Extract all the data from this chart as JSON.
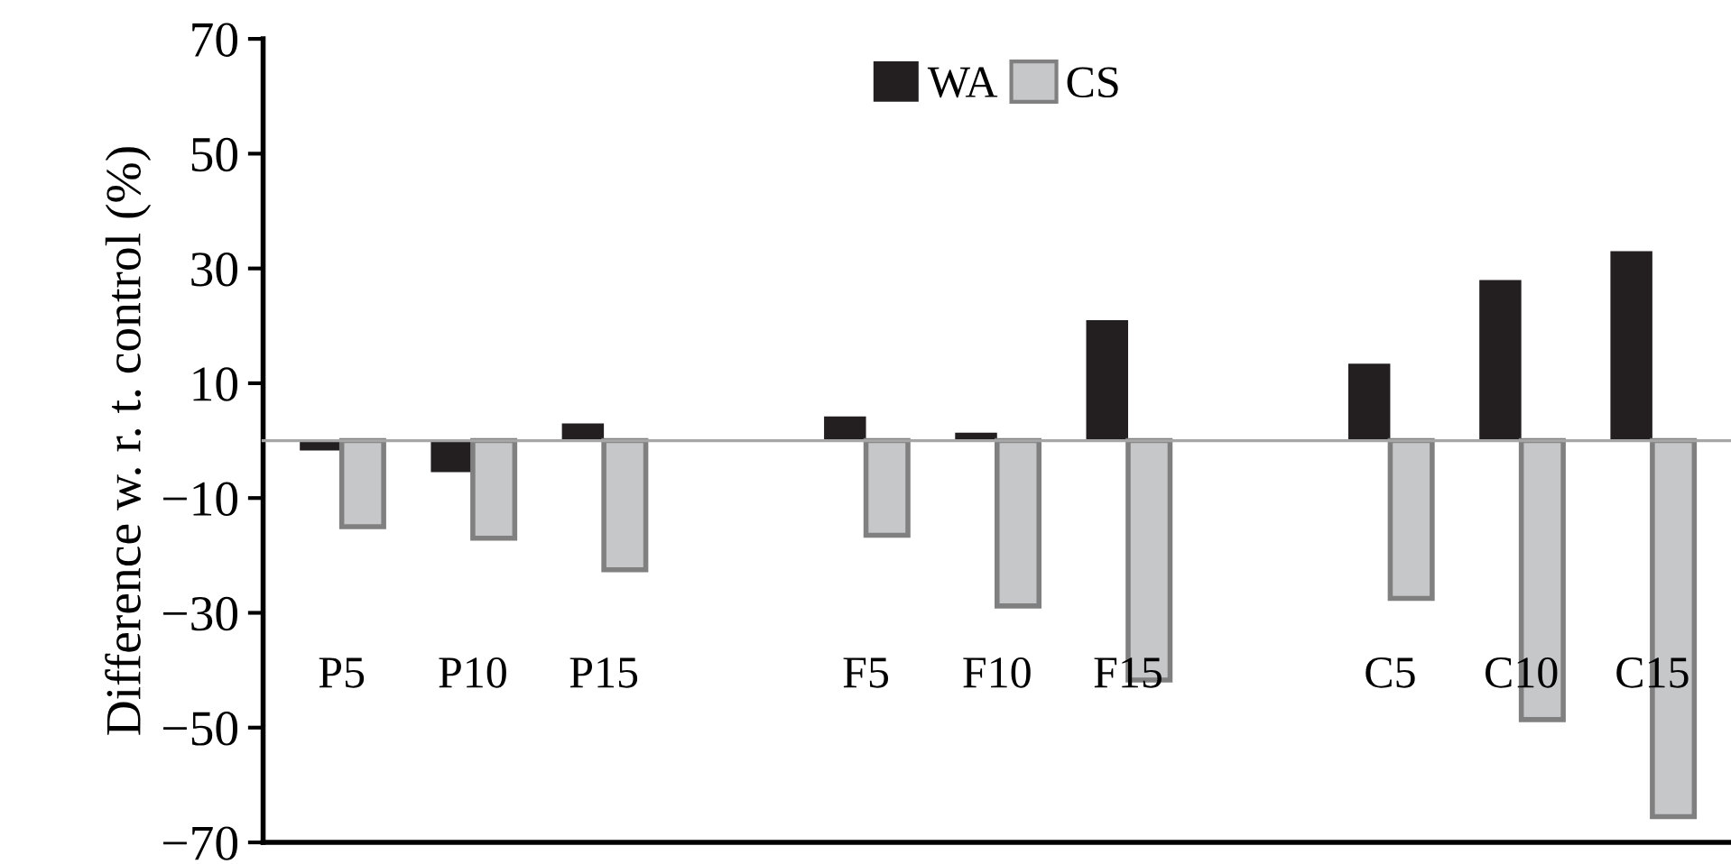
{
  "chart_data": {
    "type": "bar",
    "ylabel": "Difference w. r. t. control (%)",
    "categories": [
      "P5",
      "P10",
      "P15",
      null,
      "F5",
      "F10",
      "F15",
      null,
      "C5",
      "C10",
      "C15"
    ],
    "series": [
      {
        "name": "WA",
        "color": "#231f20",
        "values": [
          -1.7,
          -5.5,
          3,
          null,
          4.2,
          1.4,
          21,
          null,
          13.4,
          28,
          33
        ]
      },
      {
        "name": "CS",
        "color": "#c6c7c9",
        "values": [
          -15,
          -17,
          -22.5,
          null,
          -16.5,
          -28.8,
          -41.7,
          null,
          -27.5,
          -48.6,
          -65.5
        ]
      }
    ],
    "ylim": [
      -70,
      70
    ],
    "yticks": [
      {
        "value": -70,
        "label": "−70"
      },
      {
        "value": -50,
        "label": "−50"
      },
      {
        "value": -30,
        "label": "−30"
      },
      {
        "value": -10,
        "label": "−10"
      },
      10,
      30,
      50,
      70
    ],
    "legend": "top",
    "grid": false
  }
}
